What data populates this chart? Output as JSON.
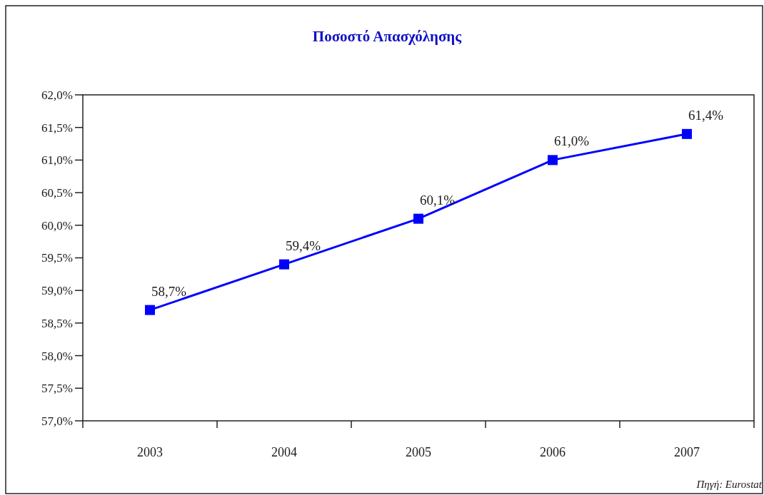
{
  "chart_data": {
    "type": "line",
    "title": "Ποσοστό Απασχόλησης",
    "categories": [
      "2003",
      "2004",
      "2005",
      "2006",
      "2007"
    ],
    "series": [
      {
        "color": "#0000ff",
        "values": [
          58.7,
          59.4,
          60.1,
          61.0,
          61.4
        ],
        "value_labels": [
          "58,7%",
          "59,4%",
          "60,1%",
          "61,0%",
          "61,4%"
        ]
      }
    ],
    "ylim": [
      57,
      62
    ],
    "yticks": [
      {
        "value": 57,
        "label": "57,0%"
      },
      {
        "value": 57.5,
        "label": "57,5%"
      },
      {
        "value": 58,
        "label": "58,0%"
      },
      {
        "value": 58.5,
        "label": "58,5%"
      },
      {
        "value": 59,
        "label": "59,0%"
      },
      {
        "value": 59.5,
        "label": "59,5%"
      },
      {
        "value": 60,
        "label": "60,0%"
      },
      {
        "value": 60.5,
        "label": "60,5%"
      },
      {
        "value": 61,
        "label": "61,0%"
      },
      {
        "value": 61.5,
        "label": "61,5%"
      },
      {
        "value": 62,
        "label": "62,0%"
      }
    ],
    "marker": "square",
    "line_style": "solid",
    "annotations": [
      "Πηγή: Eurostat"
    ]
  }
}
